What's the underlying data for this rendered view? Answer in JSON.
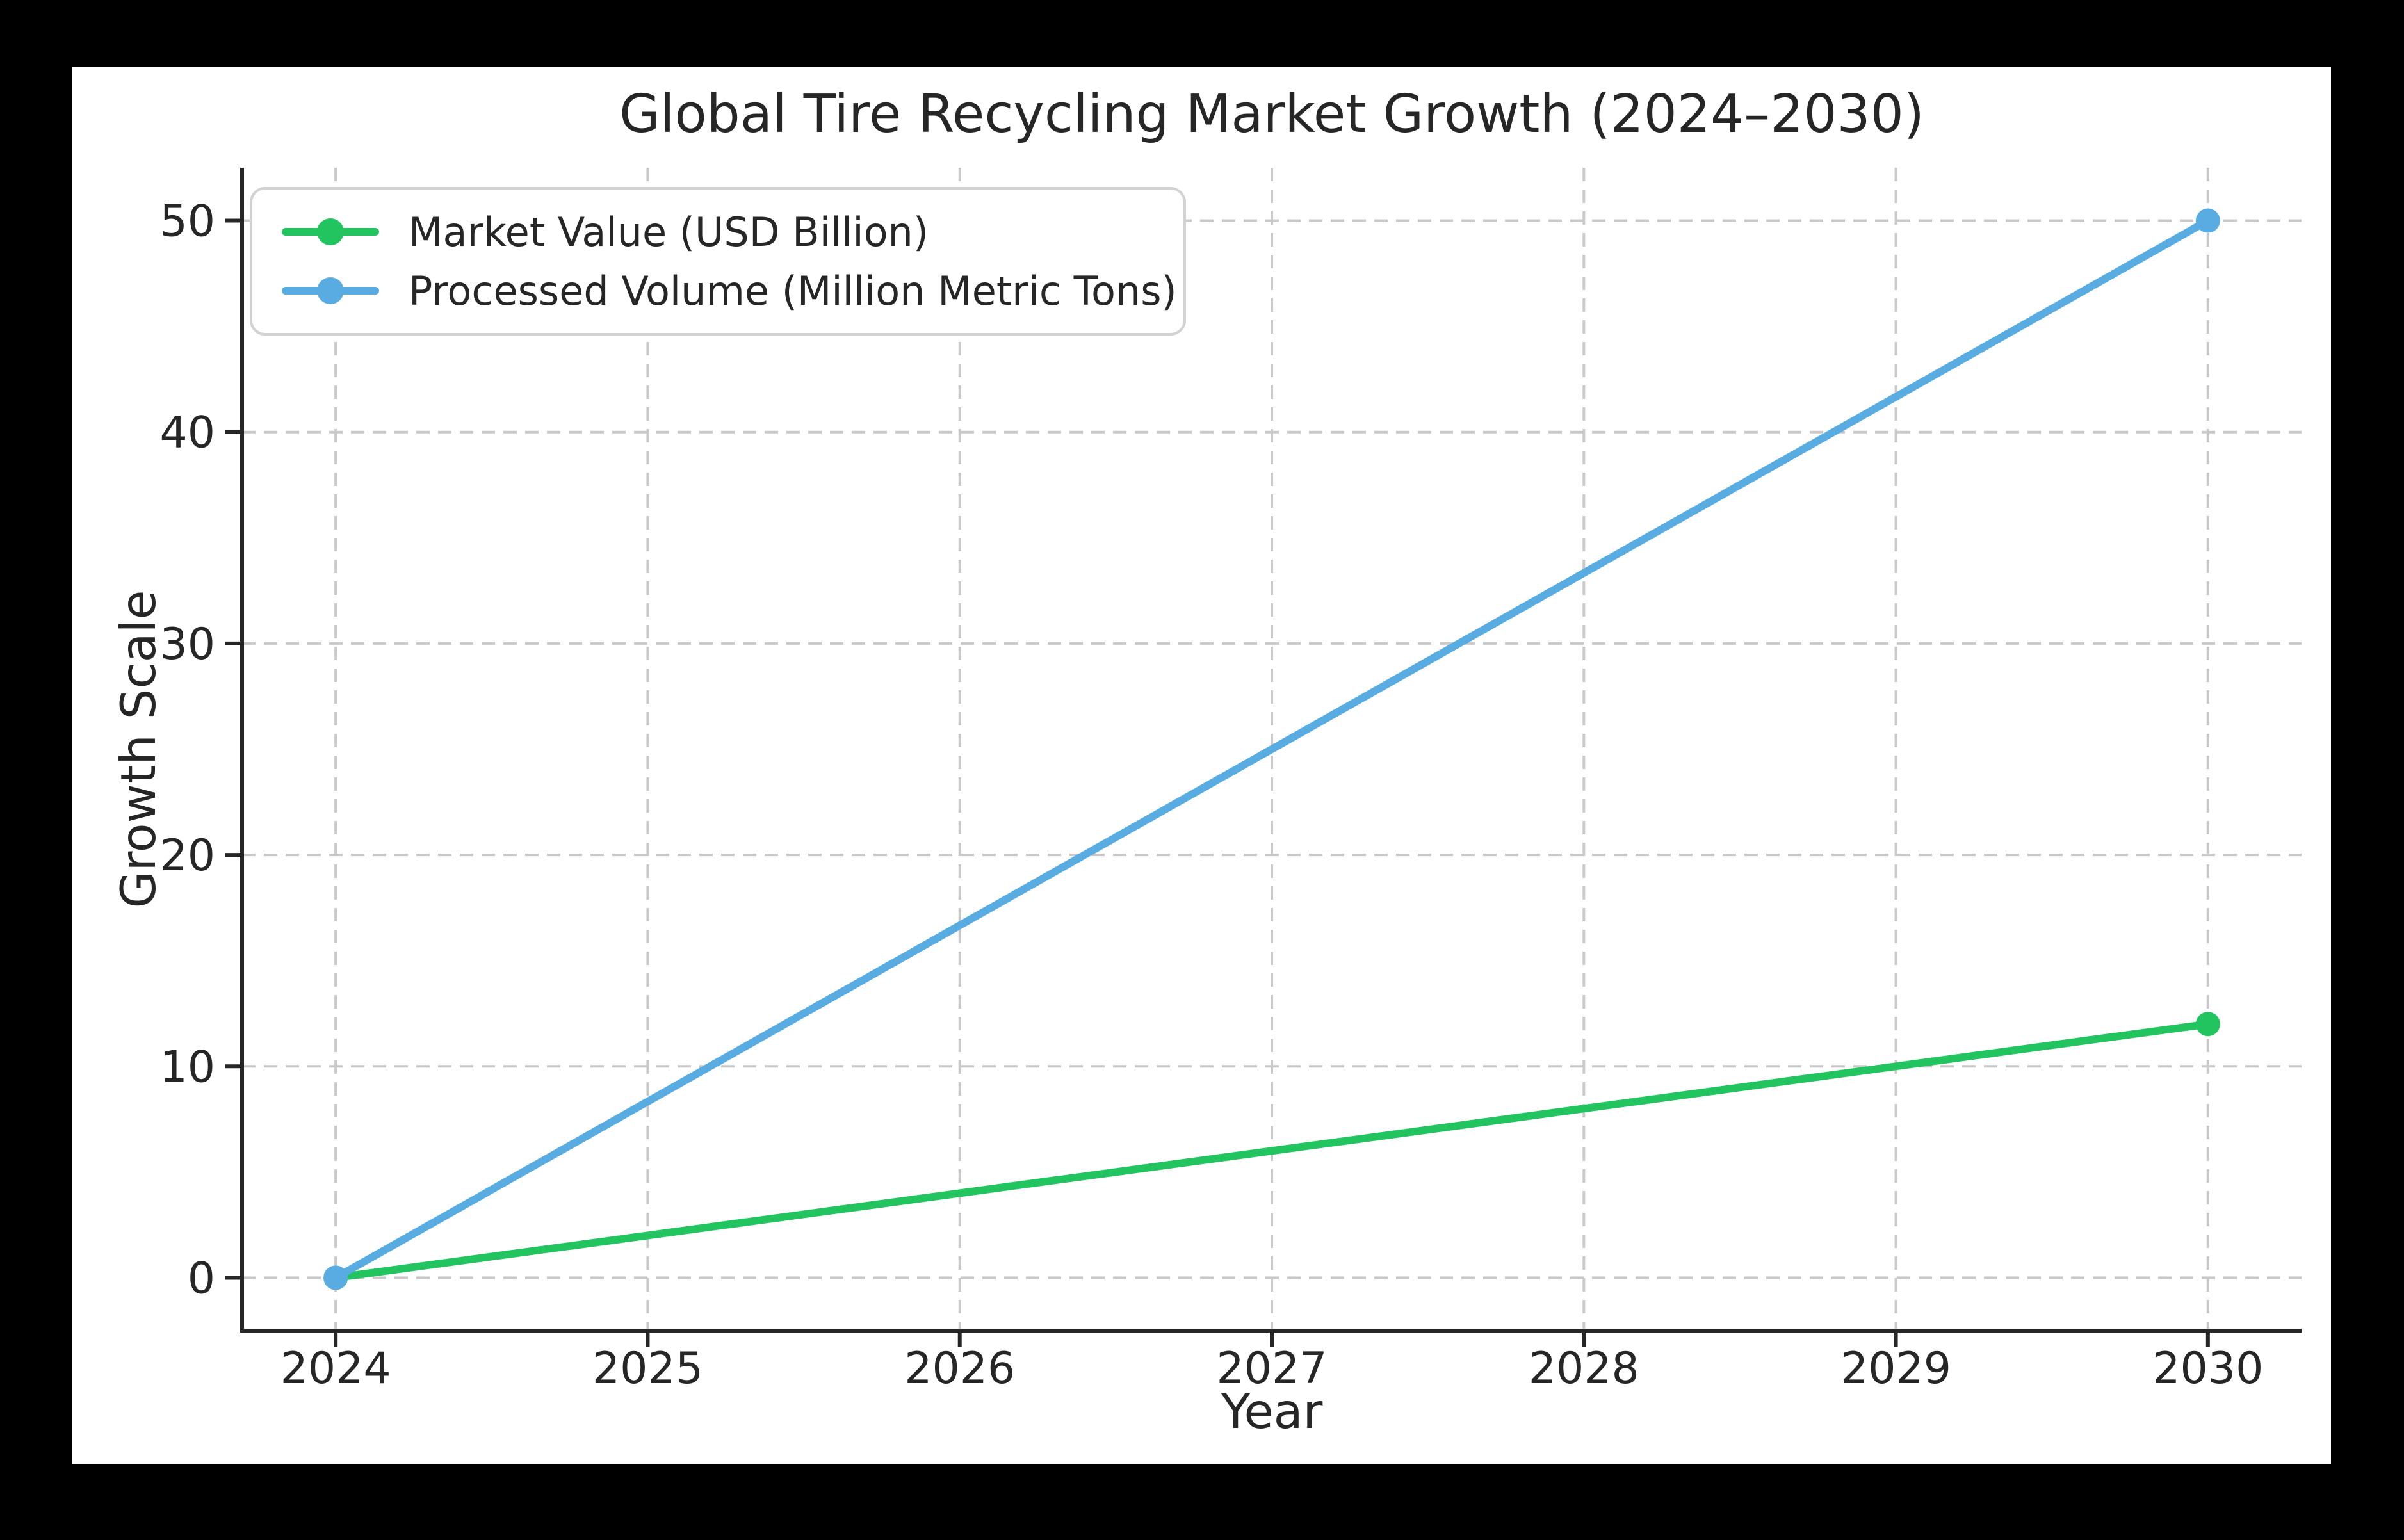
{
  "figure": {
    "background": "#000000",
    "canvas_background": "#ffffff",
    "text_color": "#262626",
    "grid_color": "#c9c9c9",
    "legend_border_color": "#d2d2d2"
  },
  "chart_data": {
    "type": "line",
    "title": "Global Tire Recycling Market Growth (2024–2030)",
    "xlabel": "Year",
    "ylabel": "Growth Scale",
    "x_ticks": [
      2024,
      2025,
      2026,
      2027,
      2028,
      2029,
      2030
    ],
    "y_ticks": [
      0,
      10,
      20,
      30,
      40,
      50
    ],
    "xlim": [
      2023.7,
      2030.3
    ],
    "ylim": [
      -2.5,
      52.5
    ],
    "grid": true,
    "grid_style": "dashed",
    "legend_position": "upper-left",
    "series": [
      {
        "name": "Market Value (USD Billion)",
        "color": "#21c45e",
        "x": [
          2024,
          2030
        ],
        "values": [
          0,
          12
        ],
        "marker": "circle"
      },
      {
        "name": "Processed Volume (Million Metric Tons)",
        "color": "#58ace2",
        "x": [
          2024,
          2030
        ],
        "values": [
          0,
          50
        ],
        "marker": "circle"
      }
    ]
  }
}
